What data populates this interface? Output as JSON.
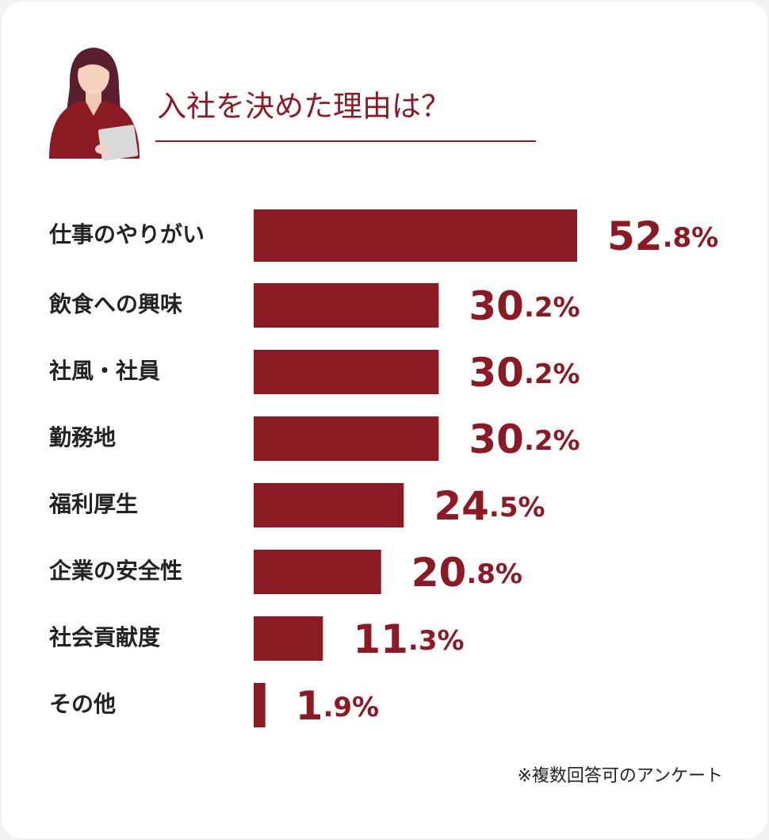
{
  "chart_data": {
    "type": "bar",
    "orientation": "horizontal",
    "title": "入社を決めた理由は？",
    "categories": [
      "仕事のやりがい",
      "飲食への興味",
      "社風・社員",
      "勤務地",
      "福利厚生",
      "企業の安全性",
      "社会貢献度",
      "その他"
    ],
    "values": [
      52.8,
      30.2,
      30.2,
      30.2,
      24.5,
      20.8,
      11.3,
      1.9
    ],
    "value_labels": [
      "52.8%",
      "30.2%",
      "30.2%",
      "30.2%",
      "24.5%",
      "20.8%",
      "11.3%",
      "1.9%"
    ],
    "color": "#8b1a24",
    "note": "※複数回答可のアンケート"
  }
}
